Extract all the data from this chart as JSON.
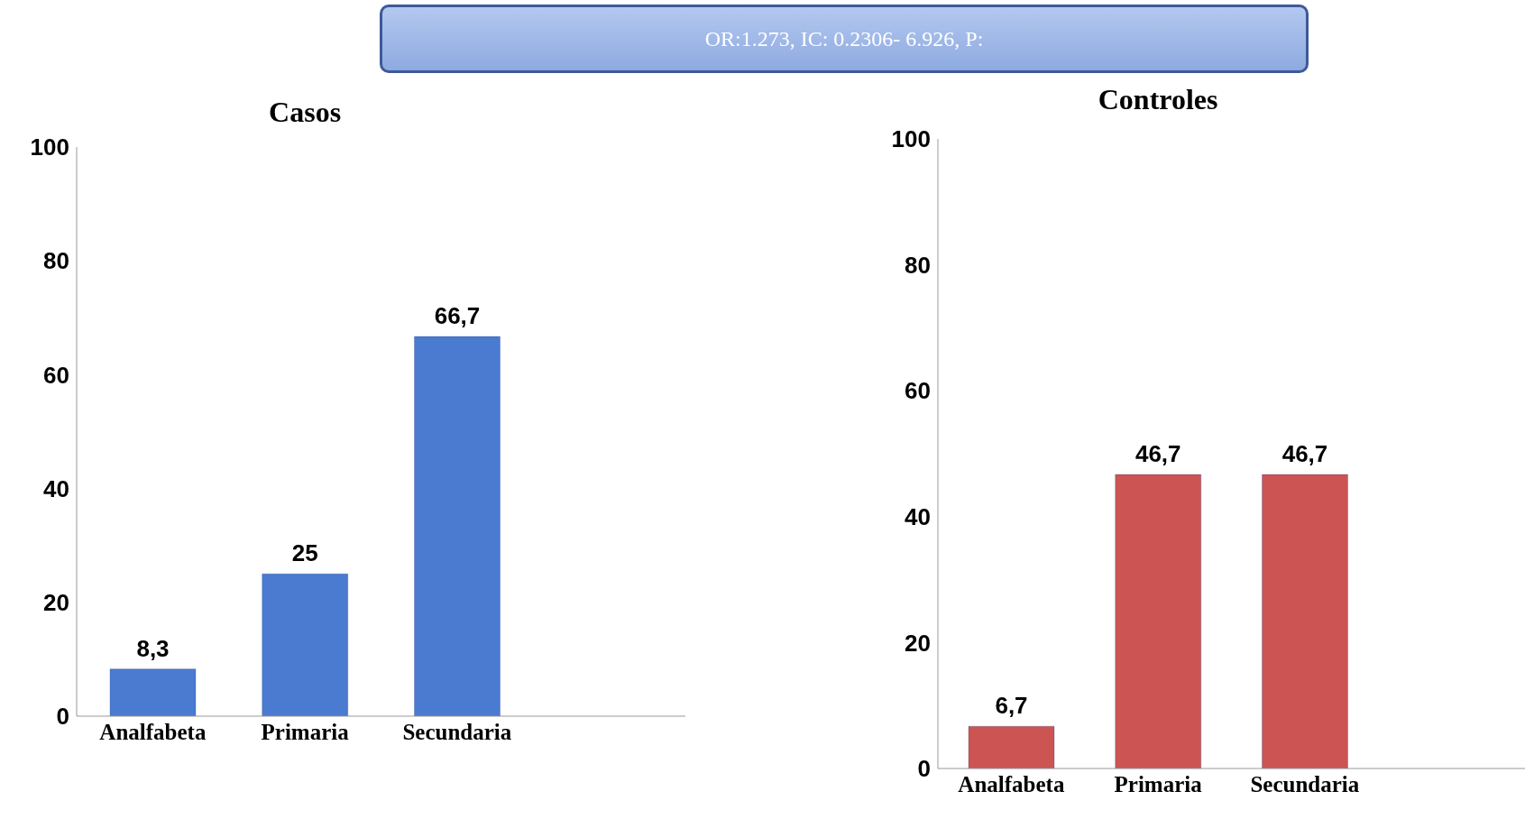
{
  "chart_data": [
    {
      "type": "other",
      "annotations": [
        "OR:1.273, IC: 0.2306- 6.926, P:"
      ]
    },
    {
      "type": "bar",
      "title": "Casos",
      "categories": [
        "Analfabeta",
        "Primaria",
        "Secundaria"
      ],
      "values": [
        8.3,
        25,
        66.7
      ],
      "value_labels": [
        "8,3",
        "25",
        "66,7"
      ],
      "color": "#4a7bd0",
      "ylim": [
        0,
        100
      ],
      "yticks": [
        0,
        20,
        40,
        60,
        80,
        100
      ],
      "grid": false,
      "legend": false
    },
    {
      "type": "bar",
      "title": "Controles",
      "categories": [
        "Analfabeta",
        "Primaria",
        "Secundaria"
      ],
      "values": [
        6.7,
        46.7,
        46.7
      ],
      "value_labels": [
        "6,7",
        "46,7",
        "46,7"
      ],
      "color": "#cc5452",
      "ylim": [
        0,
        100
      ],
      "yticks": [
        0,
        20,
        40,
        60,
        80,
        100
      ],
      "grid": false,
      "legend": false
    }
  ]
}
